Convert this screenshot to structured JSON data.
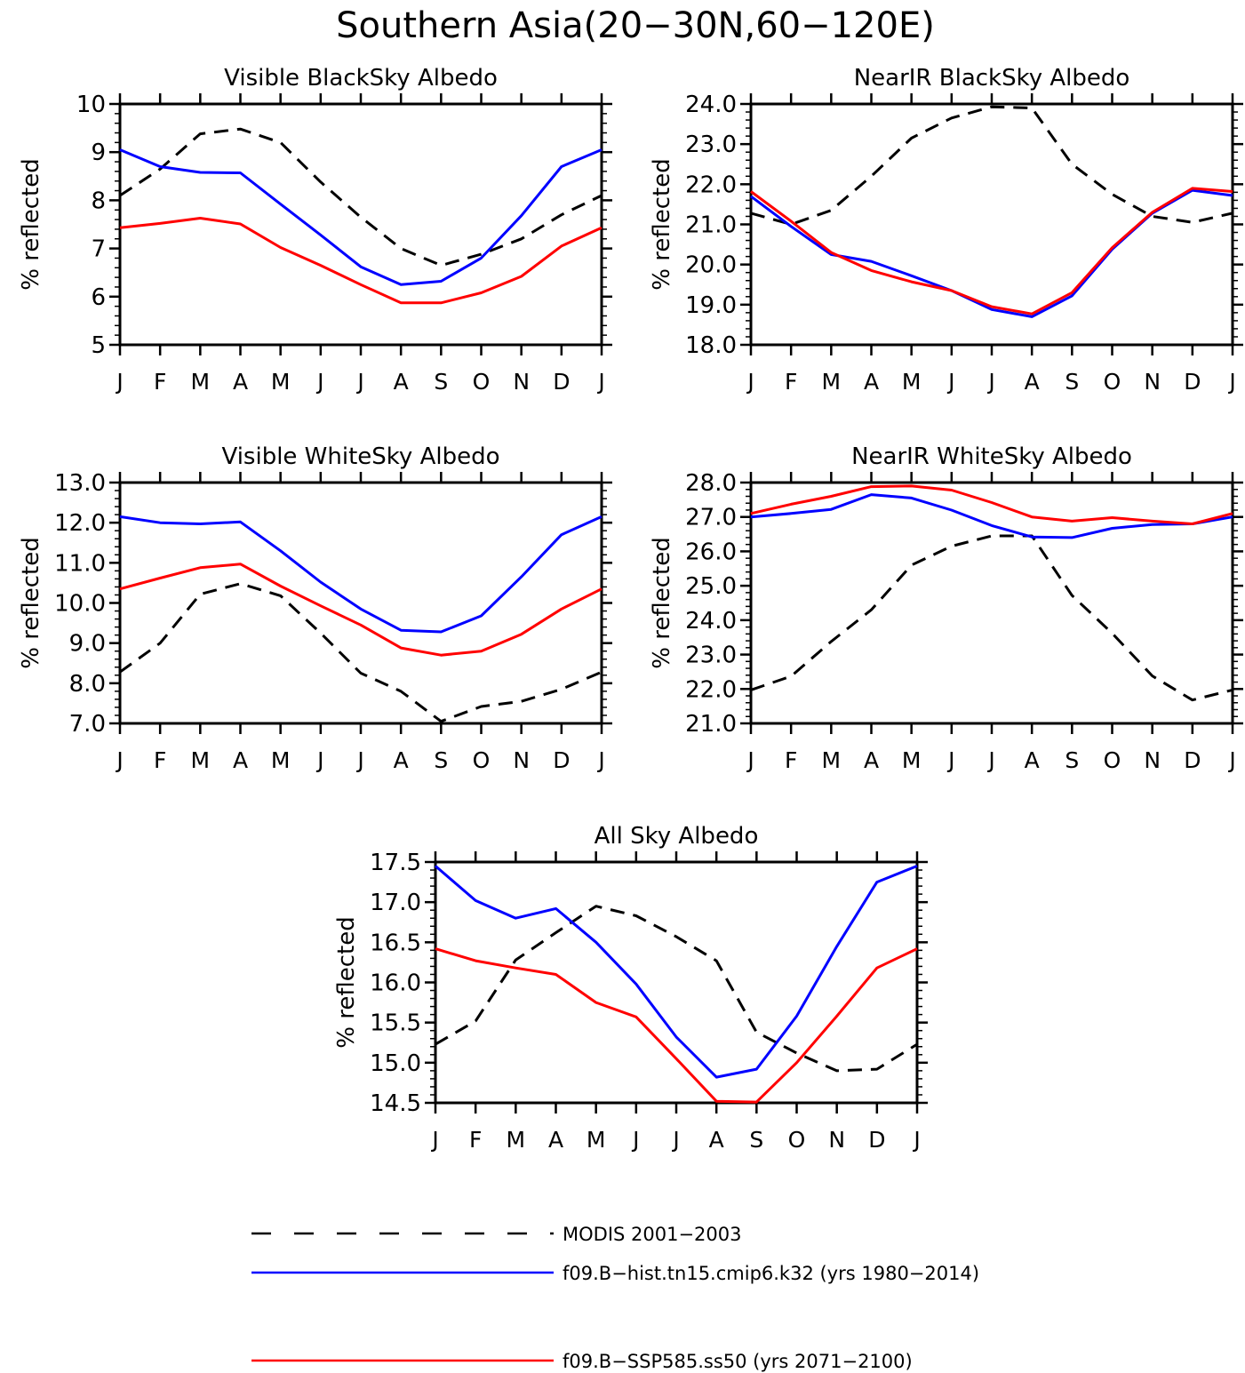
{
  "title": "Southern Asia(20−30N,60−120E)",
  "legend": {
    "items": [
      {
        "label": "MODIS 2001−2003",
        "color": "#000000",
        "style": "dashed"
      },
      {
        "label": "f09.B−hist.tn15.cmip6.k32 (yrs 1980−2014)",
        "color": "#0000ff",
        "style": "solid"
      },
      {
        "label": "f09.B−SSP585.ss50 (yrs 2071−2100)",
        "color": "#ff0000",
        "style": "solid"
      }
    ]
  },
  "chart_data": [
    {
      "type": "line",
      "title": "Visible BlackSky Albedo",
      "ylabel": "% reflected",
      "x": [
        "J",
        "F",
        "M",
        "A",
        "M",
        "J",
        "J",
        "A",
        "S",
        "O",
        "N",
        "D",
        "J"
      ],
      "ylim": [
        5,
        10
      ],
      "yticks": [
        "5",
        "6",
        "7",
        "8",
        "9",
        "10"
      ],
      "yminor": 0.2,
      "series": [
        {
          "name": "MODIS 2001−2003",
          "color": "#000000",
          "dashed": true,
          "values": [
            8.1,
            8.65,
            9.38,
            9.48,
            9.2,
            8.38,
            7.65,
            7.0,
            6.65,
            6.88,
            7.2,
            7.7,
            8.1
          ]
        },
        {
          "name": "f09.B−hist.tn15.cmip6.k32 (yrs 1980−2014)",
          "color": "#0000ff",
          "dashed": false,
          "values": [
            9.05,
            8.7,
            8.58,
            8.57,
            7.92,
            7.28,
            6.62,
            6.25,
            6.32,
            6.8,
            7.68,
            8.7,
            9.05
          ]
        },
        {
          "name": "f09.B−SSP585.ss50 (yrs 2071−2100)",
          "color": "#ff0000",
          "dashed": false,
          "values": [
            7.43,
            7.52,
            7.63,
            7.51,
            7.02,
            6.65,
            6.25,
            5.87,
            5.87,
            6.08,
            6.42,
            7.05,
            7.43
          ]
        }
      ]
    },
    {
      "type": "line",
      "title": "NearIR BlackSky Albedo",
      "ylabel": "% reflected",
      "x": [
        "J",
        "F",
        "M",
        "A",
        "M",
        "J",
        "J",
        "A",
        "S",
        "O",
        "N",
        "D",
        "J"
      ],
      "ylim": [
        18,
        24
      ],
      "yticks": [
        "18.0",
        "19.0",
        "20.0",
        "21.0",
        "22.0",
        "23.0",
        "24.0"
      ],
      "yminor": 0.2,
      "series": [
        {
          "name": "MODIS 2001−2003",
          "color": "#000000",
          "dashed": true,
          "values": [
            21.28,
            21.0,
            21.35,
            22.2,
            23.15,
            23.65,
            23.93,
            23.9,
            22.5,
            21.75,
            21.2,
            21.05,
            21.28
          ]
        },
        {
          "name": "f09.B−hist.tn15.cmip6.k32 (yrs 1980−2014)",
          "color": "#0000ff",
          "dashed": false,
          "values": [
            21.7,
            20.95,
            20.25,
            20.08,
            19.72,
            19.35,
            18.88,
            18.7,
            19.22,
            20.38,
            21.28,
            21.85,
            21.72
          ]
        },
        {
          "name": "f09.B−SSP585.ss50 (yrs 2071−2100)",
          "color": "#ff0000",
          "dashed": false,
          "values": [
            21.82,
            21.08,
            20.3,
            19.85,
            19.57,
            19.35,
            18.95,
            18.77,
            19.3,
            20.42,
            21.3,
            21.9,
            21.82
          ]
        }
      ]
    },
    {
      "type": "line",
      "title": "Visible WhiteSky Albedo",
      "ylabel": "% reflected",
      "x": [
        "J",
        "F",
        "M",
        "A",
        "M",
        "J",
        "J",
        "A",
        "S",
        "O",
        "N",
        "D",
        "J"
      ],
      "ylim": [
        7,
        13
      ],
      "yticks": [
        "7.0",
        "8.0",
        "9.0",
        "10.0",
        "11.0",
        "12.0",
        "13.0"
      ],
      "yminor": 0.2,
      "series": [
        {
          "name": "MODIS 2001−2003",
          "color": "#000000",
          "dashed": true,
          "values": [
            8.28,
            9.0,
            10.22,
            10.48,
            10.18,
            9.25,
            8.25,
            7.8,
            7.05,
            7.42,
            7.55,
            7.85,
            8.28
          ]
        },
        {
          "name": "f09.B−hist.tn15.cmip6.k32 (yrs 1980−2014)",
          "color": "#0000ff",
          "dashed": false,
          "values": [
            12.15,
            12.0,
            11.97,
            12.02,
            11.3,
            10.52,
            9.85,
            9.32,
            9.28,
            9.68,
            10.65,
            11.7,
            12.15
          ]
        },
        {
          "name": "f09.B−SSP585.ss50 (yrs 2071−2100)",
          "color": "#ff0000",
          "dashed": false,
          "values": [
            10.35,
            10.62,
            10.88,
            10.97,
            10.42,
            9.93,
            9.45,
            8.88,
            8.7,
            8.8,
            9.22,
            9.85,
            10.35
          ]
        }
      ]
    },
    {
      "type": "line",
      "title": "NearIR WhiteSky Albedo",
      "ylabel": "% reflected",
      "x": [
        "J",
        "F",
        "M",
        "A",
        "M",
        "J",
        "J",
        "A",
        "S",
        "O",
        "N",
        "D",
        "J"
      ],
      "ylim": [
        21,
        28
      ],
      "yticks": [
        "21.0",
        "22.0",
        "23.0",
        "24.0",
        "25.0",
        "26.0",
        "27.0",
        "28.0"
      ],
      "yminor": 0.2,
      "series": [
        {
          "name": "MODIS 2001−2003",
          "color": "#000000",
          "dashed": true,
          "values": [
            21.97,
            22.37,
            23.38,
            24.3,
            25.6,
            26.15,
            26.45,
            26.45,
            24.72,
            23.62,
            22.38,
            21.68,
            21.97
          ]
        },
        {
          "name": "f09.B−hist.tn15.cmip6.k32 (yrs 1980−2014)",
          "color": "#0000ff",
          "dashed": false,
          "values": [
            27.0,
            27.1,
            27.22,
            27.65,
            27.55,
            27.2,
            26.75,
            26.42,
            26.4,
            26.67,
            26.78,
            26.8,
            27.0
          ]
        },
        {
          "name": "f09.B−SSP585.ss50 (yrs 2071−2100)",
          "color": "#ff0000",
          "dashed": false,
          "values": [
            27.1,
            27.37,
            27.6,
            27.88,
            27.9,
            27.78,
            27.42,
            27.0,
            26.88,
            26.98,
            26.88,
            26.8,
            27.1
          ]
        }
      ]
    },
    {
      "type": "line",
      "title": "All Sky Albedo",
      "ylabel": "% reflected",
      "x": [
        "J",
        "F",
        "M",
        "A",
        "M",
        "J",
        "J",
        "A",
        "S",
        "O",
        "N",
        "D",
        "J"
      ],
      "ylim": [
        14.5,
        17.5
      ],
      "yticks": [
        "14.5",
        "15.0",
        "15.5",
        "16.0",
        "16.5",
        "17.0",
        "17.5"
      ],
      "yminor": 0.1,
      "series": [
        {
          "name": "MODIS 2001−2003",
          "color": "#000000",
          "dashed": true,
          "values": [
            15.23,
            15.52,
            16.28,
            16.62,
            16.95,
            16.83,
            16.57,
            16.27,
            15.38,
            15.12,
            14.9,
            14.92,
            15.23
          ]
        },
        {
          "name": "f09.B−hist.tn15.cmip6.k32 (yrs 1980−2014)",
          "color": "#0000ff",
          "dashed": false,
          "values": [
            17.45,
            17.02,
            16.8,
            16.92,
            16.5,
            15.98,
            15.32,
            14.82,
            14.92,
            15.58,
            16.45,
            17.25,
            17.45
          ]
        },
        {
          "name": "f09.B−SSP585.ss50 (yrs 2071−2100)",
          "color": "#ff0000",
          "dashed": false,
          "values": [
            16.42,
            16.27,
            16.18,
            16.1,
            15.75,
            15.57,
            15.05,
            14.52,
            14.51,
            15.0,
            15.58,
            16.18,
            16.42
          ]
        }
      ]
    }
  ]
}
